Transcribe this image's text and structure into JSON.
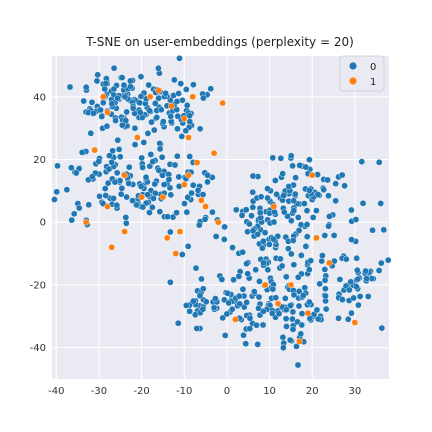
{
  "chart_data": {
    "type": "scatter",
    "title": "T-SNE on user-embeddings (perplexity = 20)",
    "xlabel": "",
    "ylabel": "",
    "xlim": [
      -41,
      38
    ],
    "ylim": [
      -50,
      53
    ],
    "xticks": [
      -40,
      -30,
      -20,
      -10,
      0,
      10,
      20,
      30
    ],
    "yticks": [
      -40,
      -20,
      0,
      20,
      40
    ],
    "grid": true,
    "legend_position": "top-right",
    "colors": {
      "0": "#1f77b4",
      "1": "#ff7f0e",
      "grid": "#e2e2e2",
      "background": "#eaeaf2"
    },
    "series": [
      {
        "name": "0",
        "color": "#1f77b4",
        "clusters": [
          {
            "center": [
              -26,
              38
            ],
            "spread": [
              5.0,
              5.0
            ],
            "n": 95
          },
          {
            "center": [
              -14,
              36
            ],
            "spread": [
              4.5,
              5.5
            ],
            "n": 70
          },
          {
            "center": [
              -27,
              12
            ],
            "spread": [
              5.5,
              6.5
            ],
            "n": 75
          },
          {
            "center": [
              -18,
              12
            ],
            "spread": [
              4.5,
              7.0
            ],
            "n": 55
          },
          {
            "center": [
              -7,
              8
            ],
            "spread": [
              3.5,
              8.0
            ],
            "n": 28
          },
          {
            "center": [
              -5,
              -27
            ],
            "spread": [
              4.0,
              4.5
            ],
            "n": 35
          },
          {
            "center": [
              3,
              -28
            ],
            "spread": [
              4.5,
              6.0
            ],
            "n": 40
          },
          {
            "center": [
              10,
              -12
            ],
            "spread": [
              6.0,
              9.0
            ],
            "n": 85
          },
          {
            "center": [
              18,
              10
            ],
            "spread": [
              6.0,
              6.5
            ],
            "n": 75
          },
          {
            "center": [
              25,
              -18
            ],
            "spread": [
              5.0,
              9.0
            ],
            "n": 60
          },
          {
            "center": [
              16,
              -30
            ],
            "spread": [
              4.5,
              5.5
            ],
            "n": 45
          },
          {
            "center": [
              9,
              2
            ],
            "spread": [
              4.0,
              4.0
            ],
            "n": 30
          },
          {
            "center": [
              30,
              -15
            ],
            "spread": [
              3.0,
              5.0
            ],
            "n": 18
          }
        ]
      },
      {
        "name": "1",
        "color": "#ff7f0e",
        "points": [
          [
            -33,
            0
          ],
          [
            -29,
            40
          ],
          [
            -28,
            35
          ],
          [
            -31,
            23
          ],
          [
            -28,
            5
          ],
          [
            -27,
            -8
          ],
          [
            -24,
            15
          ],
          [
            -24,
            -3
          ],
          [
            -21,
            27
          ],
          [
            -20,
            8
          ],
          [
            -18,
            40
          ],
          [
            -16,
            42
          ],
          [
            -15,
            8
          ],
          [
            -14,
            -5
          ],
          [
            -13,
            37
          ],
          [
            -12,
            -10
          ],
          [
            -11,
            -3
          ],
          [
            -10,
            12
          ],
          [
            -10,
            33
          ],
          [
            -9,
            27
          ],
          [
            -9,
            15
          ],
          [
            -8,
            40
          ],
          [
            -7,
            19
          ],
          [
            -6,
            7
          ],
          [
            -5,
            5
          ],
          [
            -3,
            22
          ],
          [
            -2,
            0
          ],
          [
            -1,
            38
          ],
          [
            2,
            -31
          ],
          [
            9,
            -20
          ],
          [
            11,
            5
          ],
          [
            12,
            -26
          ],
          [
            15,
            -20
          ],
          [
            17,
            -38
          ],
          [
            19,
            -29
          ],
          [
            20,
            15
          ],
          [
            21,
            -5
          ],
          [
            24,
            -13
          ],
          [
            30,
            -32
          ]
        ]
      }
    ]
  },
  "title": "T-SNE on user-embeddings (perplexity = 20)",
  "legend": {
    "items": [
      {
        "label": "0",
        "color": "#1f77b4"
      },
      {
        "label": "1",
        "color": "#ff7f0e"
      }
    ]
  }
}
